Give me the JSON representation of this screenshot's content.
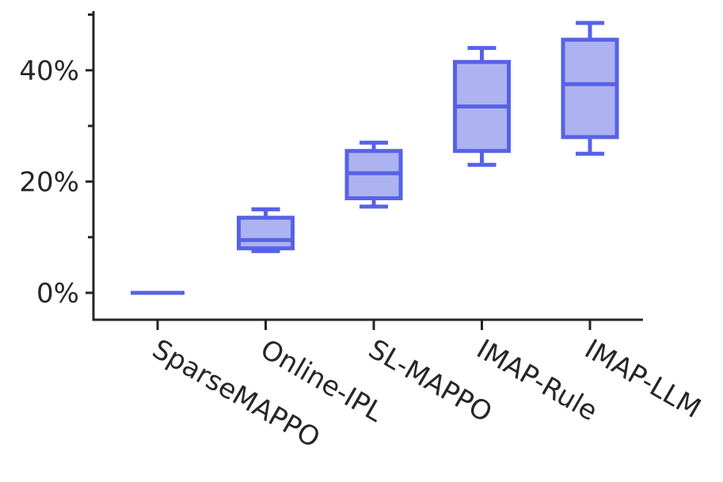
{
  "chart_data": {
    "type": "box",
    "title": "",
    "xlabel": "",
    "ylabel": "",
    "categories": [
      "SparseMAPPO",
      "Online-IPL",
      "SL-MAPPO",
      "IMAP-Rule",
      "IMAP-LLM"
    ],
    "boxes": [
      {
        "name": "SparseMAPPO",
        "whislo": 0,
        "q1": 0,
        "med": 0,
        "q3": 0,
        "whishi": 0
      },
      {
        "name": "Online-IPL",
        "whislo": 7.5,
        "q1": 8.0,
        "med": 9.5,
        "q3": 13.5,
        "whishi": 15.0
      },
      {
        "name": "SL-MAPPO",
        "whislo": 15.5,
        "q1": 17.0,
        "med": 21.5,
        "q3": 25.5,
        "whishi": 27.0
      },
      {
        "name": "IMAP-Rule",
        "whislo": 23.0,
        "q1": 25.5,
        "med": 33.5,
        "q3": 41.5,
        "whishi": 44.0
      },
      {
        "name": "IMAP-LLM",
        "whislo": 25.0,
        "q1": 28.0,
        "med": 37.5,
        "q3": 45.5,
        "whishi": 48.5
      }
    ],
    "ylim": [
      -4.5,
      51
    ],
    "y_major_ticks": [
      0,
      20,
      40
    ],
    "y_minor_ticks": [
      10,
      30,
      50
    ],
    "ytick_labels": [
      "0%",
      "20%",
      "40%"
    ],
    "grid": false,
    "colors": {
      "box_fill": "#adb3f0",
      "box_edge": "#5762e5",
      "axis": "#262626"
    }
  }
}
